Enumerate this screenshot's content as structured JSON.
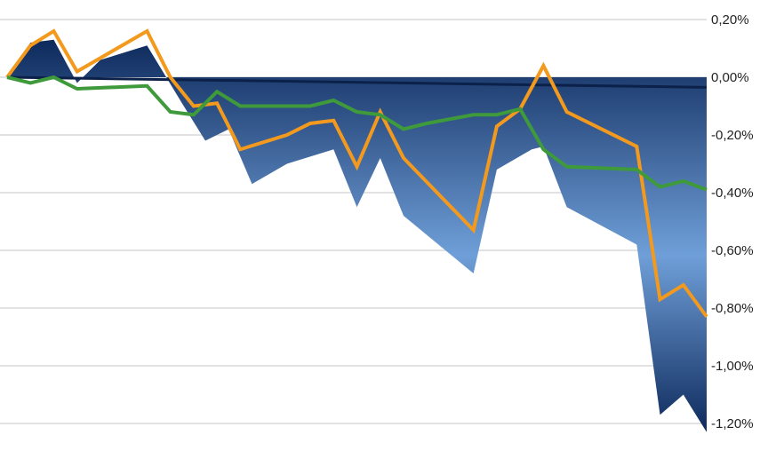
{
  "chart_data": {
    "type": "area",
    "title": "",
    "xlabel": "",
    "ylabel": "",
    "ylim": [
      -1.25,
      0.2
    ],
    "yticks": [
      0.2,
      0.0,
      -0.2,
      -0.4,
      -0.6,
      -0.8,
      -1.0,
      -1.2
    ],
    "ytick_labels": [
      "0,20%",
      "0,00%",
      "-0,20%",
      "-0,40%",
      "-0,60%",
      "-0,80%",
      "-1,00%",
      "-1,20%"
    ],
    "y_axis_position": "right",
    "grid": true,
    "legend": "none",
    "x": [
      0,
      1,
      2,
      3,
      4,
      5,
      6,
      7,
      8,
      9,
      10,
      11,
      12,
      13,
      14,
      15,
      16,
      17,
      18,
      19,
      20,
      21,
      22,
      23,
      24,
      25,
      26,
      27,
      28,
      29,
      30
    ],
    "series": [
      {
        "kind": "area",
        "color": "#0e2a5c",
        "color_light": "#6f9fd8",
        "values": [
          0.0,
          0.12,
          0.13,
          -0.02,
          0.06,
          0.11,
          -0.09,
          -0.22,
          -0.18,
          -0.37,
          -0.3,
          -0.25,
          -0.45,
          -0.28,
          -0.48,
          -0.68,
          -0.32,
          -0.25,
          -0.24,
          -0.45,
          -0.58,
          -1.17,
          -1.1,
          -1.23
        ],
        "x": [
          0,
          1,
          2,
          3,
          4,
          6,
          7.5,
          8.5,
          9.5,
          10.5,
          12,
          14,
          15,
          16,
          17,
          20,
          21,
          22.5,
          23,
          24,
          27,
          28,
          29,
          30
        ]
      },
      {
        "kind": "line",
        "color": "#f39a1e",
        "values": [
          0.0,
          0.11,
          0.16,
          0.02,
          0.09,
          0.16,
          0.0,
          -0.1,
          -0.09,
          -0.25,
          -0.2,
          -0.16,
          -0.15,
          -0.31,
          -0.12,
          -0.28,
          -0.53,
          -0.17,
          -0.11,
          0.04,
          -0.12,
          -0.24,
          -0.77,
          -0.72,
          -0.83
        ],
        "x": [
          0,
          1,
          2,
          3,
          4.5,
          6,
          7,
          8,
          9,
          10,
          12,
          13,
          14,
          15,
          16,
          17,
          20,
          21,
          22,
          23,
          24,
          27,
          28,
          29,
          30
        ]
      },
      {
        "kind": "line",
        "color": "#3e9a3a",
        "values": [
          0.0,
          -0.02,
          0.0,
          -0.04,
          -0.03,
          -0.12,
          -0.13,
          -0.05,
          -0.1,
          -0.1,
          -0.08,
          -0.12,
          -0.13,
          -0.18,
          -0.16,
          -0.13,
          -0.13,
          -0.11,
          -0.25,
          -0.31,
          -0.32,
          -0.38,
          -0.36,
          -0.39
        ],
        "x": [
          0,
          1,
          2,
          3,
          6,
          7,
          8,
          9,
          10,
          13,
          14,
          15,
          16,
          17,
          18,
          20,
          21,
          22,
          23,
          24,
          27,
          28,
          29,
          30
        ]
      },
      {
        "kind": "line",
        "color": "#0c214a",
        "values": [
          0.0,
          -0.035
        ],
        "x": [
          0,
          30
        ]
      }
    ]
  }
}
